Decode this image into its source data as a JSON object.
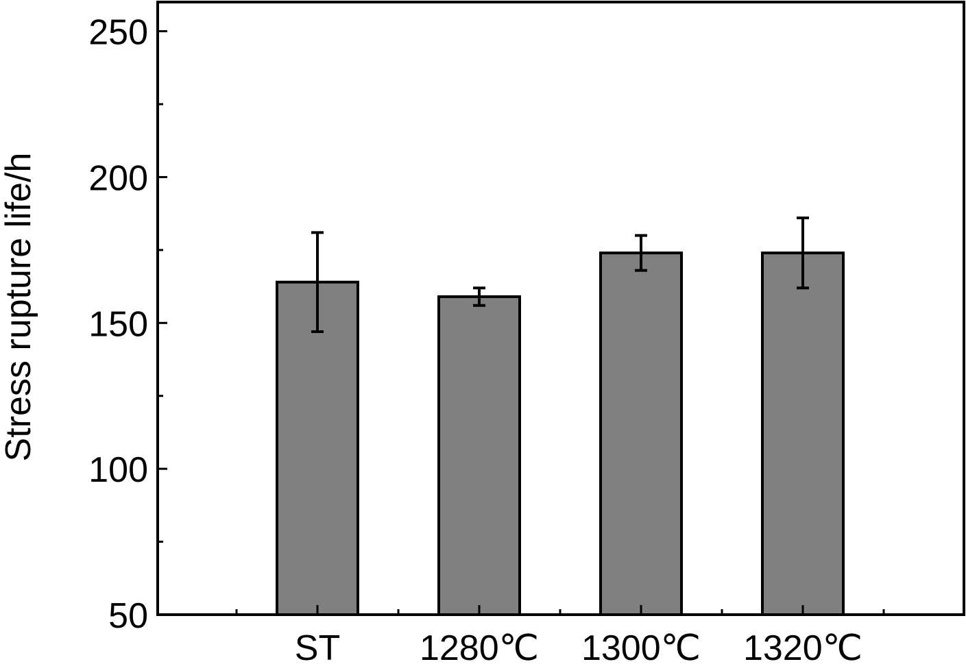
{
  "chart_data": {
    "type": "bar",
    "title": "",
    "xlabel": "",
    "ylabel": "Stress rupture life/h",
    "categories": [
      "ST",
      "1280℃",
      "1300℃",
      "1320℃"
    ],
    "values": [
      164,
      159,
      174,
      174
    ],
    "error": [
      17,
      3,
      6,
      12
    ],
    "ylim": [
      50,
      260
    ],
    "yticks": [
      50,
      100,
      150,
      200,
      250
    ],
    "grid": false,
    "legend": "none",
    "bar_color": "#808080",
    "edge_color": "#000000"
  }
}
